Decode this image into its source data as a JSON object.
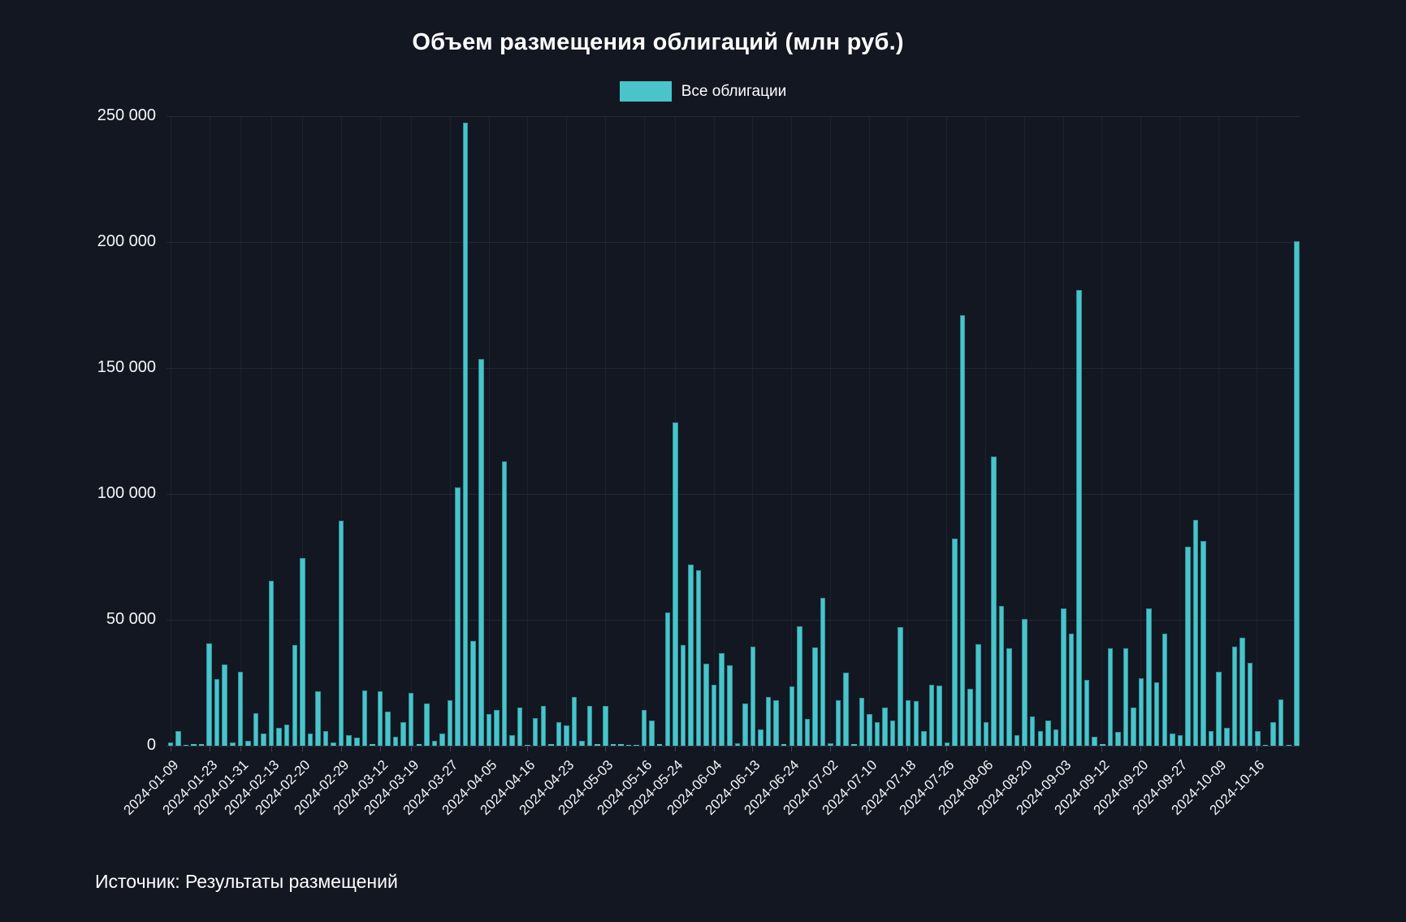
{
  "title": "Объем размещения облигаций (млн руб.)",
  "legend": {
    "label": "Все облигации",
    "swatch_color": "#4ac4c9"
  },
  "source_note": "Источник: Результаты размещений",
  "colors": {
    "background": "#131722",
    "bar_fill": "#4ac4c9",
    "bar_edge": "#28939b",
    "grid": "rgba(255,255,255,0.07)",
    "text": "#ffffff"
  },
  "chart_data": {
    "type": "bar",
    "title": "Объем размещения облигаций (млн руб.)",
    "series_name": "Все облигации",
    "xlabel": "",
    "ylabel": "",
    "ylim": [
      0,
      250000
    ],
    "grid": true,
    "legend_position": "top-center",
    "ytick_values": [
      0,
      50000,
      100000,
      150000,
      200000,
      250000
    ],
    "ytick_labels": [
      "0",
      "50 000",
      "100 000",
      "150 000",
      "200 000",
      "250 000"
    ],
    "xtick_labels": [
      "2024-01-09",
      "2024-01-23",
      "2024-01-31",
      "2024-02-13",
      "2024-02-20",
      "2024-02-29",
      "2024-03-12",
      "2024-03-19",
      "2024-03-27",
      "2024-04-05",
      "2024-04-16",
      "2024-04-23",
      "2024-05-03",
      "2024-05-16",
      "2024-05-24",
      "2024-06-04",
      "2024-06-13",
      "2024-06-24",
      "2024-07-02",
      "2024-07-10",
      "2024-07-18",
      "2024-07-26",
      "2024-08-06",
      "2024-08-20",
      "2024-09-03",
      "2024-09-12",
      "2024-09-20",
      "2024-09-27",
      "2024-10-09",
      "2024-10-16"
    ],
    "xtick_bar_indices": [
      0,
      5,
      9,
      13,
      17,
      22,
      27,
      31,
      36,
      41,
      46,
      51,
      56,
      61,
      65,
      70,
      75,
      80,
      85,
      90,
      95,
      100,
      105,
      110,
      115,
      120,
      125,
      130,
      135,
      140
    ],
    "values": [
      1300,
      5900,
      400,
      600,
      500,
      40700,
      26300,
      32300,
      1200,
      29500,
      1800,
      13000,
      4800,
      65500,
      7000,
      8500,
      40000,
      74500,
      5000,
      21500,
      5900,
      1300,
      89500,
      4200,
      3300,
      22000,
      700,
      21500,
      13400,
      3700,
      9200,
      21000,
      800,
      16800,
      2000,
      4700,
      18100,
      102700,
      247500,
      41600,
      153500,
      12600,
      14300,
      112900,
      4200,
      15100,
      300,
      10900,
      15900,
      800,
      9200,
      8100,
      19300,
      2000,
      15900,
      500,
      15900,
      700,
      500,
      300,
      400,
      14300,
      10100,
      800,
      53000,
      128500,
      39900,
      72100,
      69600,
      32700,
      24300,
      36900,
      31900,
      1000,
      16800,
      39400,
      6400,
      19300,
      18100,
      700,
      23500,
      47500,
      10500,
      39100,
      58700,
      1000,
      18000,
      29000,
      800,
      19000,
      12600,
      9200,
      15100,
      10100,
      47000,
      18100,
      17600,
      5900,
      24300,
      23800,
      1300,
      82200,
      171100,
      22700,
      40300,
      9200,
      114900,
      55400,
      38600,
      4200,
      50300,
      11700,
      5900,
      10100,
      6400,
      54500,
      44500,
      180900,
      26000,
      3700,
      500,
      38600,
      5400,
      38600,
      15100,
      26800,
      54500,
      25200,
      44500,
      5000,
      4200,
      78900,
      89800,
      81400,
      5900,
      29400,
      7000,
      39500,
      43000,
      33000,
      5900,
      300,
      9200,
      18500,
      400,
      200200
    ]
  }
}
